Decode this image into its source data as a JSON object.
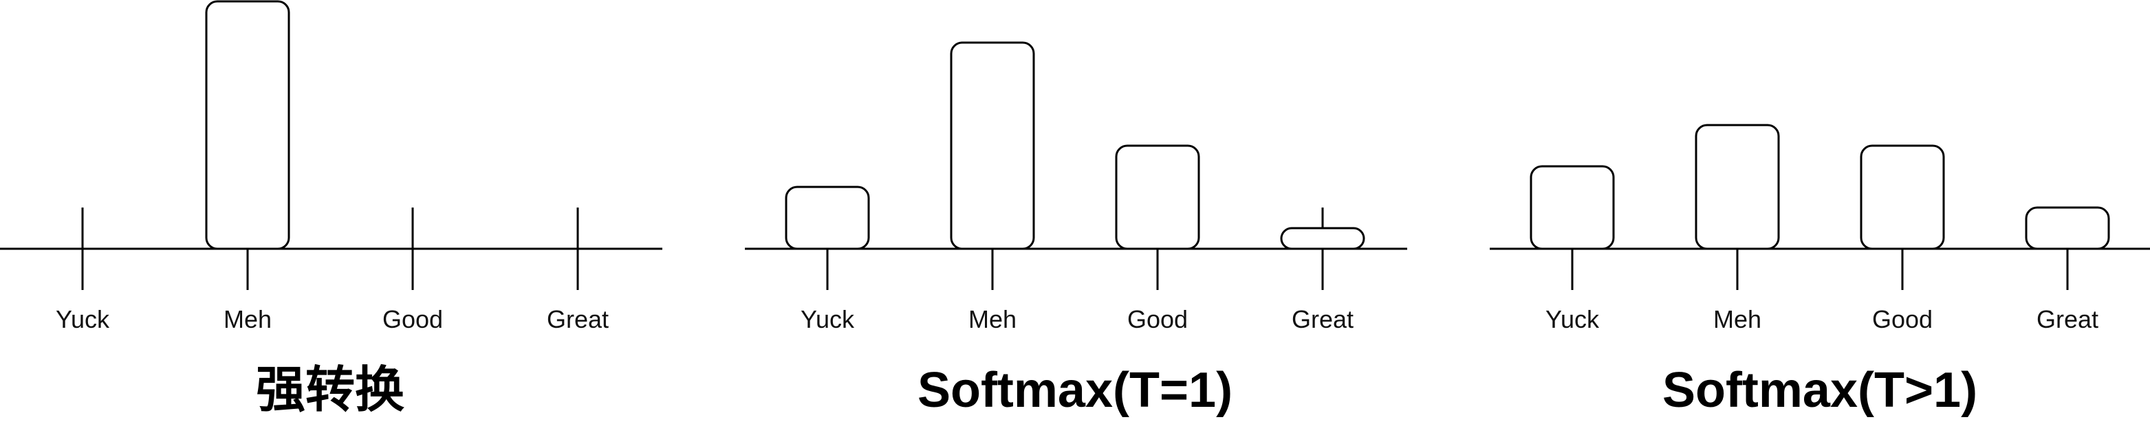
{
  "chart_data": [
    {
      "type": "bar",
      "title": "强转换",
      "categories": [
        "Yuck",
        "Meh",
        "Good",
        "Great"
      ],
      "values": [
        0,
        6,
        0,
        0
      ],
      "ylim": [
        0,
        6
      ],
      "grid": false
    },
    {
      "type": "bar",
      "title": "Softmax(T=1)",
      "categories": [
        "Yuck",
        "Meh",
        "Good",
        "Great"
      ],
      "values": [
        1.5,
        5,
        2.5,
        0.5
      ],
      "ylim": [
        0,
        6
      ],
      "grid": false
    },
    {
      "type": "bar",
      "title": "Softmax(T>1)",
      "categories": [
        "Yuck",
        "Meh",
        "Good",
        "Great"
      ],
      "values": [
        2,
        3,
        2.5,
        1
      ],
      "ylim": [
        0,
        6
      ],
      "grid": false
    }
  ]
}
